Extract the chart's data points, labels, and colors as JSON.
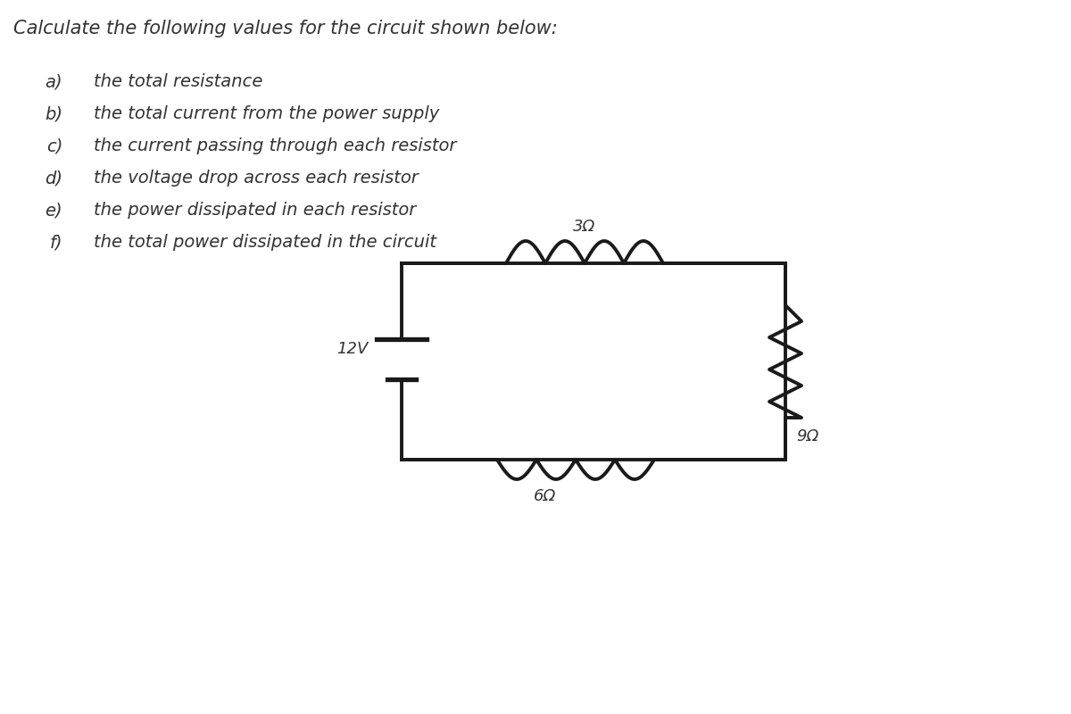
{
  "title": "Calculate the following values for the circuit shown below:",
  "questions": [
    [
      "a)",
      "the total resistance"
    ],
    [
      "b)",
      "the total current from the power supply"
    ],
    [
      "c)",
      "the current passing through each resistor"
    ],
    [
      "d)",
      "the voltage drop across each resistor"
    ],
    [
      "e)",
      "the power dissipated in each resistor"
    ],
    [
      "f)",
      "the total power dissipated in the circuit"
    ]
  ],
  "bg_color": "#ffffff",
  "text_color": "#333333",
  "circuit_color": "#1a1a1a",
  "battery_label": "12V",
  "resistor_labels": [
    "3Ω",
    "6Ω",
    "9Ω"
  ],
  "title_fontsize": 15,
  "question_fontsize": 14,
  "circuit_lw": 2.8
}
